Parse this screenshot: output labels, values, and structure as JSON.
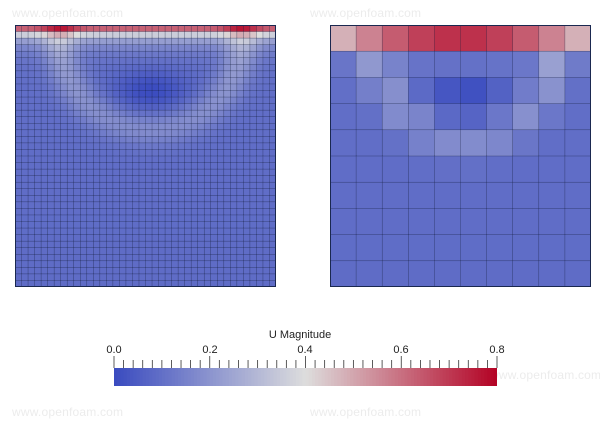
{
  "watermark": "www.openfoam.com",
  "legend": {
    "title": "U Magnitude",
    "min": 0.0,
    "max": 0.8,
    "tick_labels": [
      "0.0",
      "0.2",
      "0.4",
      "0.6",
      "0.8"
    ],
    "colormap_low": "#3b4cc0",
    "colormap_mid": "#dddddd",
    "colormap_high": "#b40426"
  },
  "panels": [
    {
      "name": "fine-mesh",
      "grid_cols": 40,
      "grid_rows": 40
    },
    {
      "name": "coarse-mesh",
      "grid_cols": 10,
      "grid_rows": 10
    }
  ]
}
